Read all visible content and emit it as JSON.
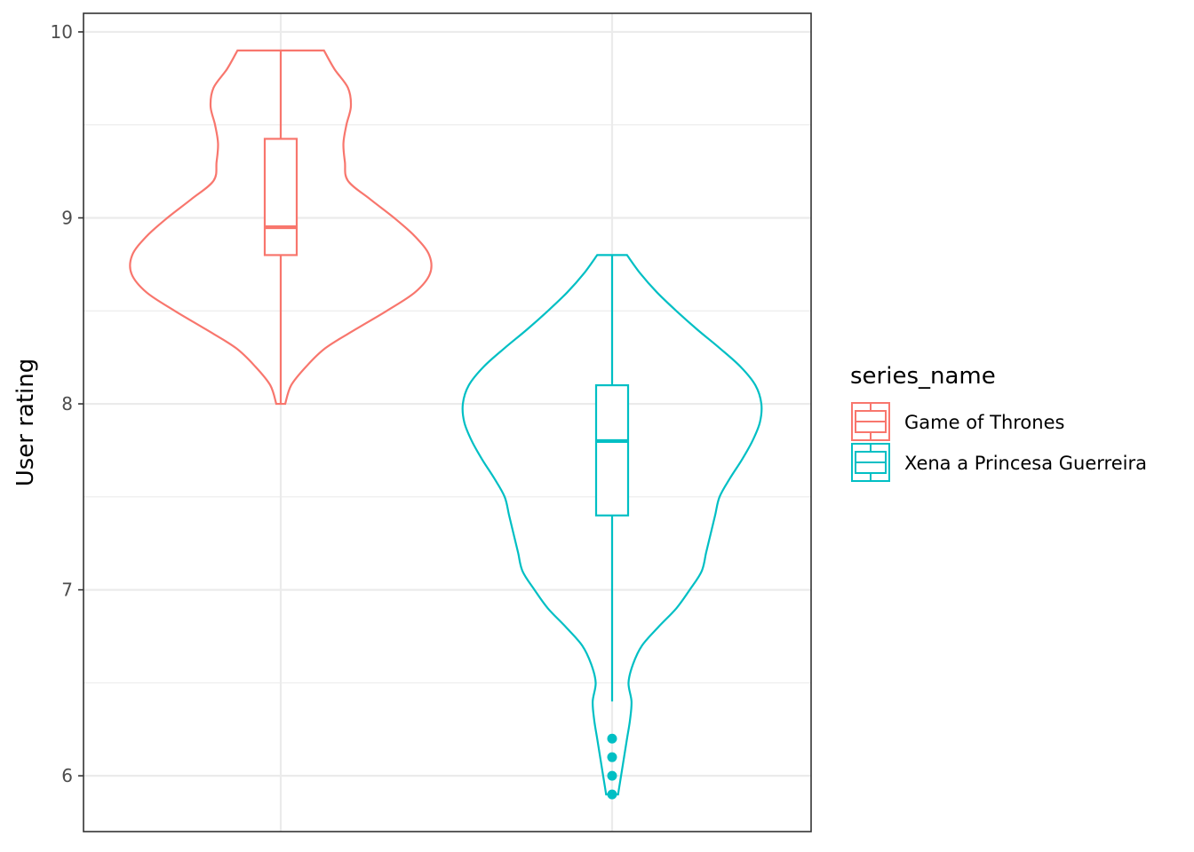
{
  "chart_data": {
    "type": "violin",
    "title": "",
    "xlabel": "",
    "ylabel": "User rating",
    "ylim": [
      5.7,
      10.1
    ],
    "yticks": [
      "6",
      "7",
      "8",
      "9",
      "10"
    ],
    "grid": true,
    "legend": {
      "title": "series_name",
      "position": "right"
    },
    "series": [
      {
        "name": "Game of Thrones",
        "color": "#F8766D",
        "min": 8.0,
        "max": 9.9,
        "box": {
          "q1": 8.8,
          "median": 8.95,
          "q3": 9.425,
          "whisker_low": 8.0,
          "whisker_high": 9.9
        },
        "outliers": [],
        "density": [
          [
            8.0,
            0.03
          ],
          [
            8.1,
            0.07
          ],
          [
            8.2,
            0.17
          ],
          [
            8.3,
            0.3
          ],
          [
            8.4,
            0.5
          ],
          [
            8.5,
            0.71
          ],
          [
            8.6,
            0.9
          ],
          [
            8.7,
            1.0
          ],
          [
            8.8,
            0.995
          ],
          [
            8.9,
            0.9
          ],
          [
            9.0,
            0.76
          ],
          [
            9.1,
            0.6
          ],
          [
            9.2,
            0.45
          ],
          [
            9.3,
            0.43
          ],
          [
            9.4,
            0.42
          ],
          [
            9.5,
            0.44
          ],
          [
            9.6,
            0.47
          ],
          [
            9.7,
            0.45
          ],
          [
            9.8,
            0.36
          ],
          [
            9.9,
            0.29
          ]
        ]
      },
      {
        "name": "Xena a Princesa Guerreira",
        "color": "#00BFC4",
        "min": 5.9,
        "max": 8.8,
        "box": {
          "q1": 7.4,
          "median": 7.8,
          "q3": 8.1,
          "whisker_low": 6.4,
          "whisker_high": 8.8
        },
        "outliers": [
          6.2,
          6.1,
          6.0,
          5.9
        ],
        "density": [
          [
            5.9,
            0.04
          ],
          [
            6.0,
            0.06
          ],
          [
            6.1,
            0.08
          ],
          [
            6.2,
            0.1
          ],
          [
            6.3,
            0.12
          ],
          [
            6.4,
            0.13
          ],
          [
            6.5,
            0.11
          ],
          [
            6.6,
            0.14
          ],
          [
            6.7,
            0.2
          ],
          [
            6.8,
            0.31
          ],
          [
            6.9,
            0.43
          ],
          [
            7.0,
            0.52
          ],
          [
            7.1,
            0.6
          ],
          [
            7.2,
            0.63
          ],
          [
            7.3,
            0.66
          ],
          [
            7.4,
            0.69
          ],
          [
            7.5,
            0.72
          ],
          [
            7.6,
            0.79
          ],
          [
            7.7,
            0.87
          ],
          [
            7.8,
            0.94
          ],
          [
            7.9,
            0.99
          ],
          [
            8.0,
            1.0
          ],
          [
            8.1,
            0.96
          ],
          [
            8.2,
            0.86
          ],
          [
            8.3,
            0.72
          ],
          [
            8.4,
            0.57
          ],
          [
            8.5,
            0.43
          ],
          [
            8.6,
            0.3
          ],
          [
            8.7,
            0.19
          ],
          [
            8.8,
            0.1
          ]
        ]
      }
    ]
  }
}
